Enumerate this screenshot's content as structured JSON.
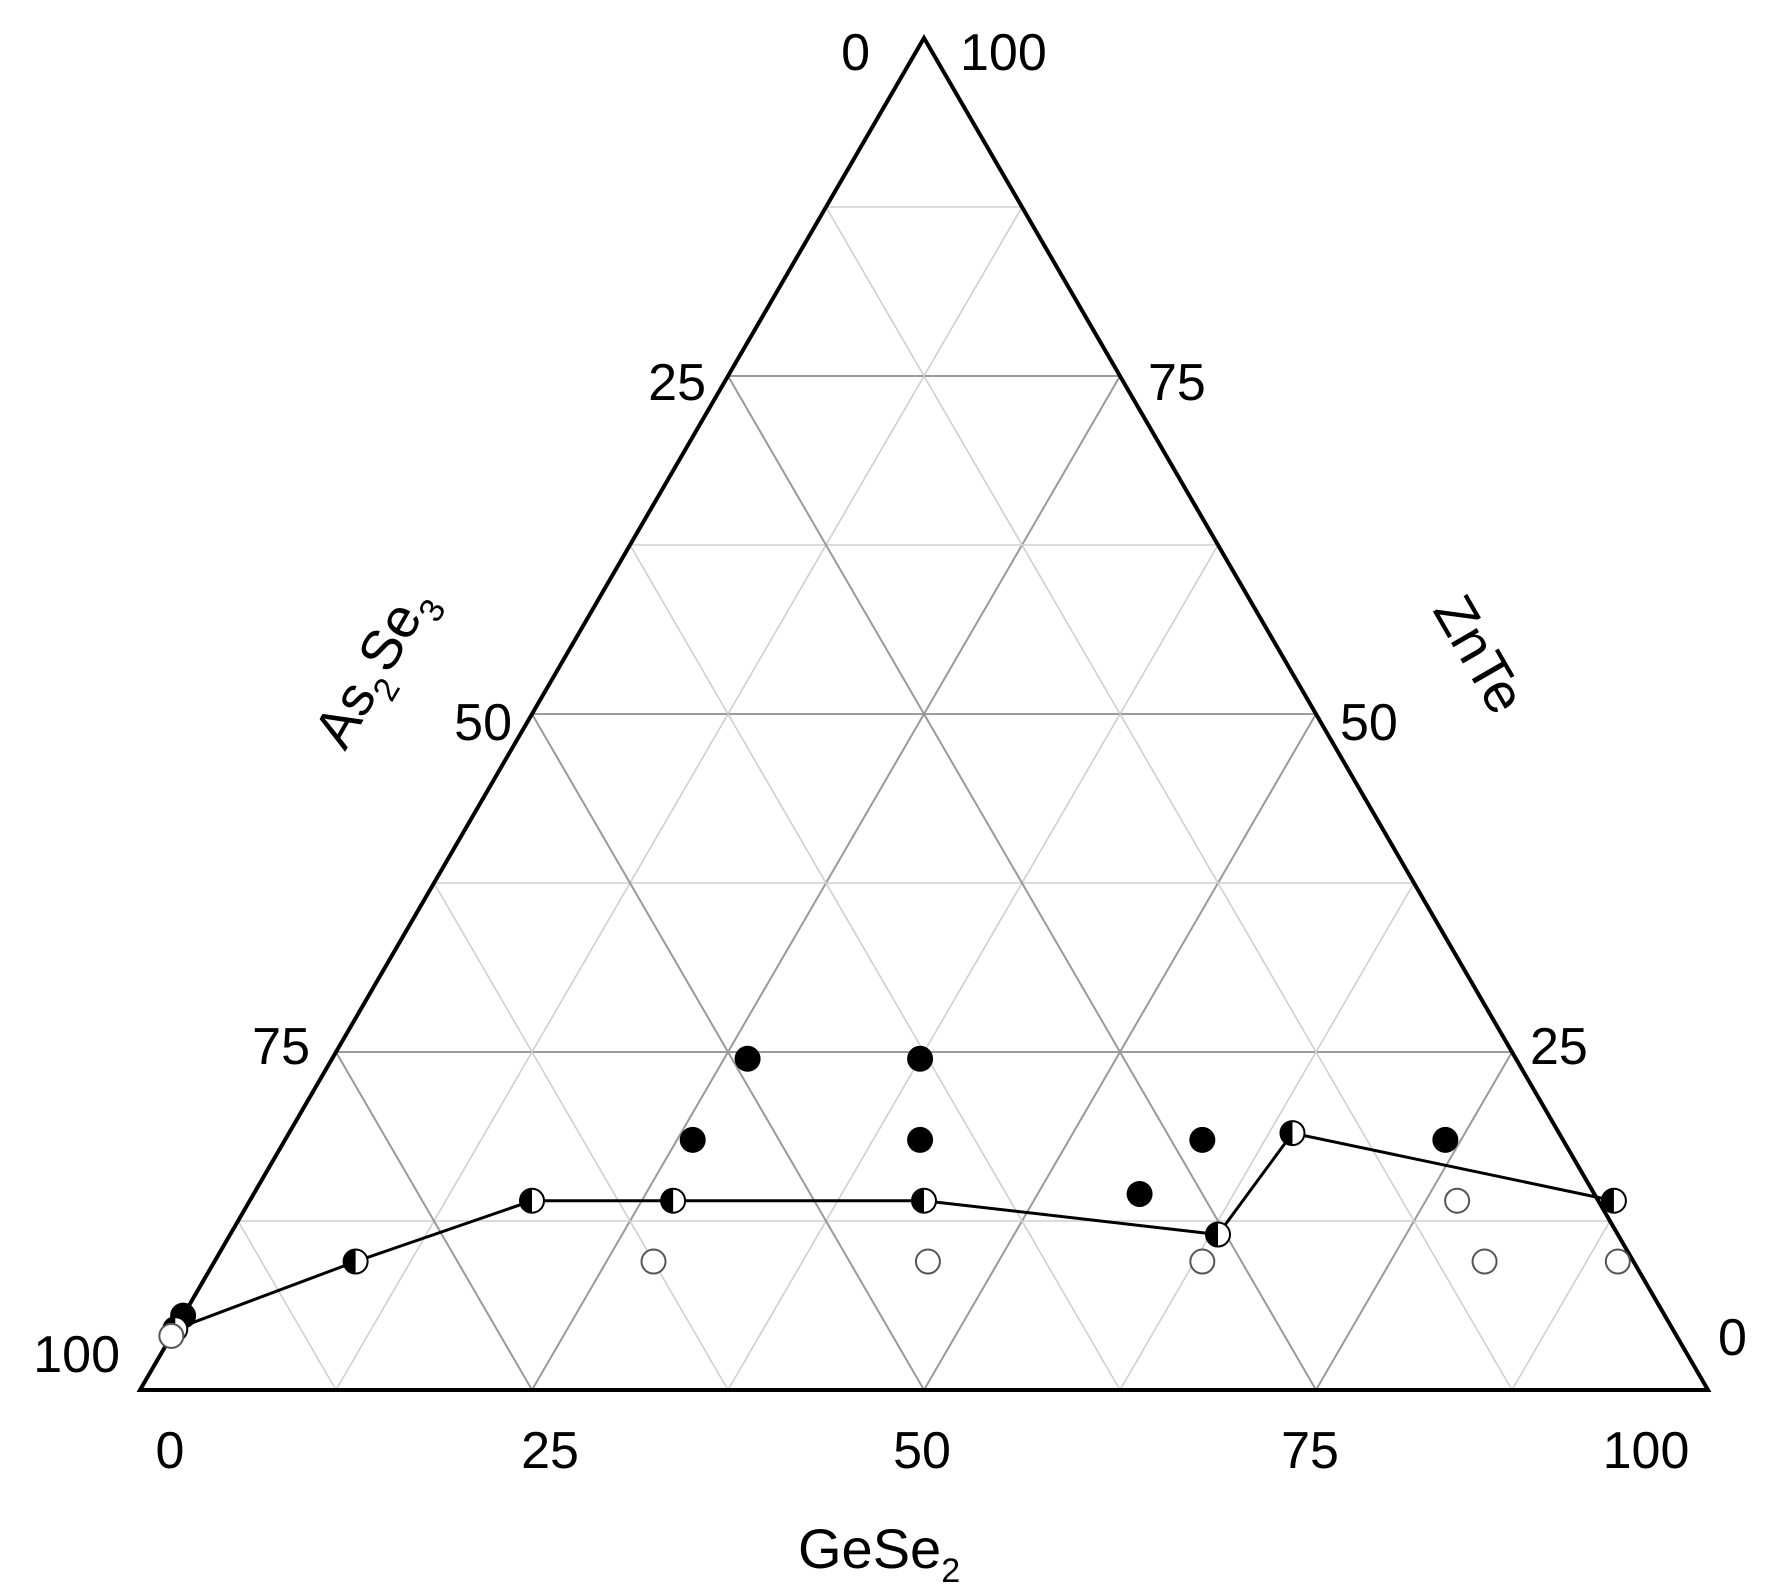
{
  "chart_data": {
    "type": "scatter",
    "subtype": "ternary",
    "title": "",
    "axes": {
      "bottom": {
        "label": "GeSe",
        "label_subscript": "2",
        "ticks": [
          "0",
          "25",
          "50",
          "75",
          "100"
        ]
      },
      "left": {
        "label_parts": [
          "As",
          "2",
          "Se",
          "3"
        ],
        "ticks": [
          "25",
          "50",
          "75",
          "100"
        ]
      },
      "right": {
        "label": "ZnTe",
        "ticks": [
          "25",
          "50",
          "75"
        ]
      },
      "apex": {
        "left_tick": "0",
        "right_tick": "100"
      },
      "right_corner_tick": "0"
    },
    "grid": true,
    "grid_step": 12.5,
    "series": [
      {
        "marker": "filled",
        "points": [
          {
            "gese2": 0,
            "znte": 5.5
          },
          {
            "gese2": 26,
            "znte": 18.5
          },
          {
            "gese2": 26.5,
            "znte": 24.5
          },
          {
            "gese2": 40.5,
            "znte": 18.5
          },
          {
            "gese2": 37.5,
            "znte": 24.5
          },
          {
            "gese2": 58.5,
            "znte": 18.5
          },
          {
            "gese2": 56.5,
            "znte": 14.5
          },
          {
            "gese2": 74,
            "znte": 18.5
          }
        ]
      },
      {
        "marker": "half-filled",
        "points": [
          {
            "gese2": 0,
            "znte": 4.5
          },
          {
            "gese2": 9,
            "znte": 9.5
          },
          {
            "gese2": 18,
            "znte": 14.0
          },
          {
            "gese2": 27,
            "znte": 14.0
          },
          {
            "gese2": 43,
            "znte": 14.0
          },
          {
            "gese2": 63,
            "znte": 11.5
          },
          {
            "gese2": 64,
            "znte": 19.0
          },
          {
            "gese2": 87,
            "znte": 14.0
          }
        ]
      },
      {
        "marker": "open",
        "points": [
          {
            "gese2": 0,
            "znte": 4.0
          },
          {
            "gese2": 28,
            "znte": 9.5
          },
          {
            "gese2": 45.5,
            "znte": 9.5
          },
          {
            "gese2": 63,
            "znte": 9.5
          },
          {
            "gese2": 77,
            "znte": 14.0
          },
          {
            "gese2": 81,
            "znte": 9.5
          },
          {
            "gese2": 89.5,
            "znte": 9.5
          }
        ]
      }
    ],
    "boundary_line": [
      {
        "gese2": 0,
        "znte": 4.5
      },
      {
        "gese2": 9,
        "znte": 9.5
      },
      {
        "gese2": 18,
        "znte": 14.0
      },
      {
        "gese2": 43,
        "znte": 14.0
      },
      {
        "gese2": 63,
        "znte": 11.5
      },
      {
        "gese2": 64,
        "znte": 19.0
      },
      {
        "gese2": 87,
        "znte": 14.0
      }
    ]
  }
}
